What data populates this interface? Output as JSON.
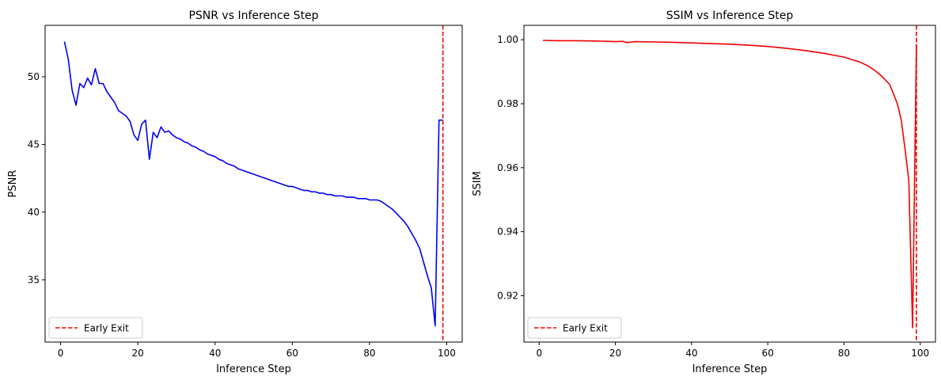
{
  "chart_data": [
    {
      "type": "line",
      "title": "PSNR vs Inference Step",
      "xlabel": "Inference Step",
      "ylabel": "PSNR",
      "xlim": [
        -4,
        104
      ],
      "ylim": [
        30.4,
        53.8
      ],
      "xticks": [
        0,
        20,
        40,
        60,
        80,
        100
      ],
      "yticks": [
        35,
        40,
        45,
        50
      ],
      "legend_position": "lower-left",
      "series": [
        {
          "color": "#0000ee",
          "x": [
            1,
            2,
            3,
            4,
            5,
            6,
            7,
            8,
            9,
            10,
            11,
            12,
            13,
            14,
            15,
            16,
            17,
            18,
            19,
            20,
            21,
            22,
            23,
            24,
            25,
            26,
            27,
            28,
            29,
            30,
            31,
            32,
            33,
            34,
            35,
            36,
            37,
            38,
            39,
            40,
            41,
            42,
            43,
            44,
            45,
            46,
            47,
            48,
            49,
            50,
            51,
            52,
            53,
            54,
            55,
            56,
            57,
            58,
            59,
            60,
            61,
            62,
            63,
            64,
            65,
            66,
            67,
            68,
            69,
            70,
            71,
            72,
            73,
            74,
            75,
            76,
            77,
            78,
            79,
            80,
            81,
            82,
            83,
            84,
            85,
            86,
            87,
            88,
            89,
            90,
            91,
            92,
            93,
            94,
            95,
            96,
            97,
            98,
            99
          ],
          "y": [
            52.6,
            51.3,
            49.0,
            47.9,
            49.5,
            49.2,
            49.9,
            49.4,
            50.6,
            49.5,
            49.5,
            48.9,
            48.5,
            48.1,
            47.5,
            47.3,
            47.1,
            46.7,
            45.7,
            45.3,
            46.5,
            46.8,
            43.9,
            45.9,
            45.5,
            46.3,
            45.9,
            46.0,
            45.7,
            45.5,
            45.4,
            45.2,
            45.1,
            44.9,
            44.8,
            44.6,
            44.5,
            44.3,
            44.2,
            44.1,
            43.9,
            43.8,
            43.6,
            43.5,
            43.4,
            43.2,
            43.1,
            43.0,
            42.9,
            42.8,
            42.7,
            42.6,
            42.5,
            42.4,
            42.3,
            42.2,
            42.1,
            42.0,
            41.9,
            41.9,
            41.8,
            41.7,
            41.6,
            41.6,
            41.5,
            41.5,
            41.4,
            41.4,
            41.3,
            41.3,
            41.2,
            41.2,
            41.2,
            41.1,
            41.1,
            41.1,
            41.0,
            41.0,
            41.0,
            40.9,
            40.9,
            40.9,
            40.8,
            40.6,
            40.4,
            40.2,
            39.9,
            39.6,
            39.3,
            38.9,
            38.4,
            37.9,
            37.3,
            36.3,
            35.3,
            34.4,
            31.6,
            46.8,
            46.8
          ]
        }
      ],
      "vline": {
        "x": 99,
        "color": "#ee0000",
        "label": "Early Exit"
      }
    },
    {
      "type": "line",
      "title": "SSIM vs Inference Step",
      "xlabel": "Inference Step",
      "ylabel": "SSIM",
      "xlim": [
        -4,
        104
      ],
      "ylim": [
        0.9055,
        1.0045
      ],
      "xticks": [
        0,
        20,
        40,
        60,
        80,
        100
      ],
      "yticks": [
        0.92,
        0.94,
        0.96,
        0.98,
        1.0
      ],
      "ytick_labels": [
        "0.92",
        "0.94",
        "0.96",
        "0.98",
        "1.00"
      ],
      "legend_position": "lower-left",
      "series": [
        {
          "color": "#ee0000",
          "x": [
            1,
            5,
            10,
            15,
            20,
            22,
            23,
            25,
            30,
            35,
            40,
            45,
            50,
            55,
            60,
            65,
            70,
            75,
            78,
            80,
            82,
            84,
            86,
            88,
            90,
            92,
            93,
            94,
            95,
            96,
            97,
            98,
            99
          ],
          "y": [
            0.9998,
            0.9997,
            0.9997,
            0.9996,
            0.9994,
            0.9995,
            0.9991,
            0.9994,
            0.9993,
            0.9992,
            0.999,
            0.9988,
            0.9986,
            0.9983,
            0.9979,
            0.9973,
            0.9966,
            0.9957,
            0.995,
            0.9946,
            0.9938,
            0.9931,
            0.992,
            0.9905,
            0.9885,
            0.986,
            0.983,
            0.98,
            0.975,
            0.966,
            0.956,
            0.91,
            0.9985
          ]
        }
      ],
      "vline": {
        "x": 99,
        "color": "#ee0000",
        "label": "Early Exit"
      }
    }
  ]
}
